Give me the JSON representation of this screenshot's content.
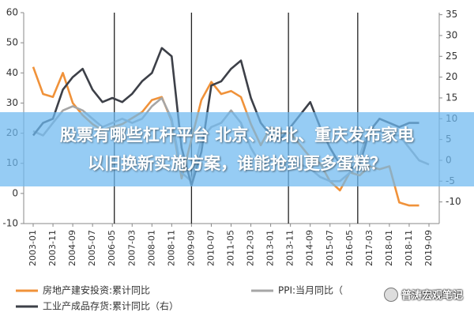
{
  "chart_data": {
    "type": "line",
    "x": [
      "2003-01",
      "2003-06",
      "2003-11",
      "2004-04",
      "2004-09",
      "2005-02",
      "2005-07",
      "2005-12",
      "2006-05",
      "2006-10",
      "2007-03",
      "2007-08",
      "2008-01",
      "2008-06",
      "2008-11",
      "2009-04",
      "2009-09",
      "2010-02",
      "2010-07",
      "2010-12",
      "2011-05",
      "2011-10",
      "2012-03",
      "2012-08",
      "2013-01",
      "2013-06",
      "2013-11",
      "2014-04",
      "2014-09",
      "2015-02",
      "2015-07",
      "2015-12",
      "2016-05",
      "2016-10",
      "2017-03",
      "2017-08",
      "2018-01",
      "2018-06",
      "2018-11",
      "2019-04",
      "2019-09"
    ],
    "series": [
      {
        "name": "房地产建安投资:累计同比",
        "color": "#f0923a",
        "axis": "y",
        "values": [
          42,
          33,
          32,
          40,
          30,
          26,
          23,
          21,
          22,
          23,
          25,
          27,
          31,
          32,
          24,
          5,
          18,
          31,
          37,
          33,
          34,
          32,
          23,
          16,
          22,
          20,
          20,
          16,
          12,
          10,
          4,
          1,
          7,
          6,
          9,
          8,
          9,
          -3,
          -4,
          -4,
          null
        ]
      },
      {
        "name": "PPI:当月同比（",
        "color": "#a6a6a6",
        "axis": "y2",
        "values": [
          7,
          6,
          9,
          12,
          13,
          12,
          10,
          8,
          9,
          10,
          9,
          10,
          13,
          15,
          10,
          -3,
          -5,
          5,
          8,
          9,
          12,
          9,
          3,
          -1,
          0,
          -1,
          -1,
          -1,
          -2,
          -4,
          -5,
          -5,
          -3,
          1,
          8,
          7,
          6,
          6,
          3,
          0,
          -1
        ]
      },
      {
        "name": "工业产成品存货:累计同比（右）",
        "color": "#3d4048",
        "axis": "y2",
        "values": [
          6,
          9,
          10,
          17,
          20,
          22,
          17,
          14,
          15,
          14,
          16,
          19,
          21,
          27,
          25,
          3,
          -6,
          2,
          18,
          19,
          22,
          24,
          15,
          9,
          6,
          5,
          8,
          11,
          14,
          8,
          3,
          -1,
          -2,
          -1,
          7,
          10,
          9,
          8,
          9,
          9,
          null
        ]
      }
    ],
    "xlim": [
      "2003-01",
      "2019-09"
    ],
    "xticks": [
      "2003-01",
      "2003-11",
      "2004-09",
      "2005-07",
      "2006-05",
      "2007-03",
      "2008-01",
      "2008-11",
      "2009-09",
      "2010-07",
      "2011-05",
      "2012-03",
      "2013-01",
      "2013-11",
      "2014-09",
      "2015-07",
      "2016-05",
      "2017-03",
      "2018-01",
      "2018-11",
      "2019-09"
    ],
    "ylim": [
      -10,
      60
    ],
    "yticks": [
      -10,
      0,
      10,
      20,
      30,
      40,
      50,
      60
    ],
    "y2lim": [
      -15.2,
      35.5
    ],
    "y2ticks": [
      -10,
      -5,
      0,
      5,
      10,
      15,
      20,
      25,
      30,
      35
    ],
    "reference_lines": [
      "2006-06",
      "2009-09",
      "2013-10",
      "2016-09"
    ]
  },
  "overlay": {
    "lines": [
      "股票有哪些杠杆平台 北京、湖北、重庆发布家电",
      "以旧换新实施方案，谁能抢到更多蛋糕？"
    ]
  },
  "watermark": "普涛宏观笔记"
}
